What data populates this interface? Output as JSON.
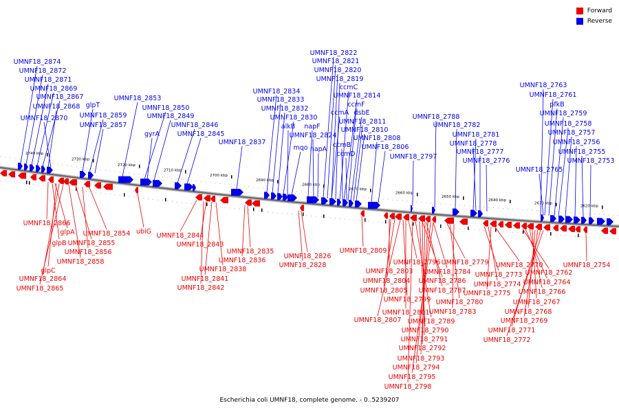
{
  "legend": {
    "forward_label": "Forward",
    "reverse_label": "Reverse",
    "forward_color": "#ee0000",
    "reverse_color": "#0000ee"
  },
  "caption": "Escherichia coli UMNF18, complete genome. - 0..5239207",
  "ruler_ticks": [
    "2740 kbp",
    "2730 kbp",
    "2720 kbp",
    "2710 kbp",
    "2700 kbp",
    "2690 kbp",
    "2680 kbp",
    "2670 kbp",
    "2660 kbp",
    "2650 kbp",
    "2640 kbp",
    "2630 kbp",
    "2620 kbp"
  ],
  "reverse_labels": [
    "UMNF18_2874",
    "UMNF18_2872",
    "UMNF18_2871",
    "UMNF18_2869",
    "UMNF18_2867",
    "UMNF18_2868",
    "UMNF18_2870",
    "glpT",
    "UMNF18_2859",
    "UMNF18_2857",
    "UMNF18_2853",
    "UMNF18_2850",
    "UMNF18_2849",
    "gyrA",
    "UMNF18_2846",
    "UMNF18_2845",
    "UMNF18_2837",
    "UMNF18_2834",
    "UMNF18_2833",
    "UMNF18_2832",
    "UMNF18_2830",
    "alkB",
    "mqo",
    "napF",
    "UMNF18_2824",
    "napA",
    "UMNF18_2822",
    "UMNF18_2821",
    "UMNF18_2820",
    "UMNF18_2819",
    "ccmC",
    "UMNF18_2814",
    "ccmF",
    "ccmA",
    "dsbE",
    "UMNF18_2811",
    "UMNF18_2810",
    "ccmB",
    "ccmD",
    "UMNF18_2808",
    "UMNF18_2806",
    "UMNF18_2797",
    "UMNF18_2788",
    "UMNF18_2782",
    "UMNF18_2781",
    "UMNF18_2778",
    "UMNF18_2777",
    "UMNF18_2776",
    "UMNF18_2763",
    "UMNF18_2761",
    "pfkB",
    "UMNF18_2759",
    "UMNF18_2758",
    "UMNF18_2757",
    "UMNF18_2756",
    "UMNF18_2755",
    "UMNF18_2753",
    "UMNF18_2765"
  ],
  "forward_labels": [
    "UMNF18_2866",
    "glpA",
    "glpB",
    "UMNF18_2855",
    "UMNF18_2856",
    "UMNF18_2858",
    "glpC",
    "UMNF18_2864",
    "UMNF18_2865",
    "UMNF18_2854",
    "ubiG",
    "UMNF18_2844",
    "UMNF18_2843",
    "UMNF18_2835",
    "UMNF18_2836",
    "UMNF18_2838",
    "UMNF18_2841",
    "UMNF18_2842",
    "UMNF18_2826",
    "UMNF18_2828",
    "UMNF18_2809",
    "UMNF18_2796",
    "UMNF18_2803",
    "UMNF18_2804",
    "UMNF18_2805",
    "UMNF18_2799",
    "UMNF18_2801",
    "UMNF18_2807",
    "UMNF18_2786",
    "UMNF18_2787",
    "UMNF18_2784",
    "UMNF18_2779",
    "UMNF18_2780",
    "UMNF18_2783",
    "UMNF18_2789",
    "UMNF18_2790",
    "UMNF18_2791",
    "UMNF18_2792",
    "UMNF18_2793",
    "UMNF18_2794",
    "UMNF18_2795",
    "UMNF18_2798",
    "UMNF18_2773",
    "UMNF18_2774",
    "UMNF18_2775",
    "UMNF18_2770",
    "UMNF18_2762",
    "UMNF18_2764",
    "UMNF18_2766",
    "UMNF18_2767",
    "UMNF18_2768",
    "UMNF18_2769",
    "UMNF18_2771",
    "UMNF18_2772",
    "UMNF18_2754"
  ]
}
